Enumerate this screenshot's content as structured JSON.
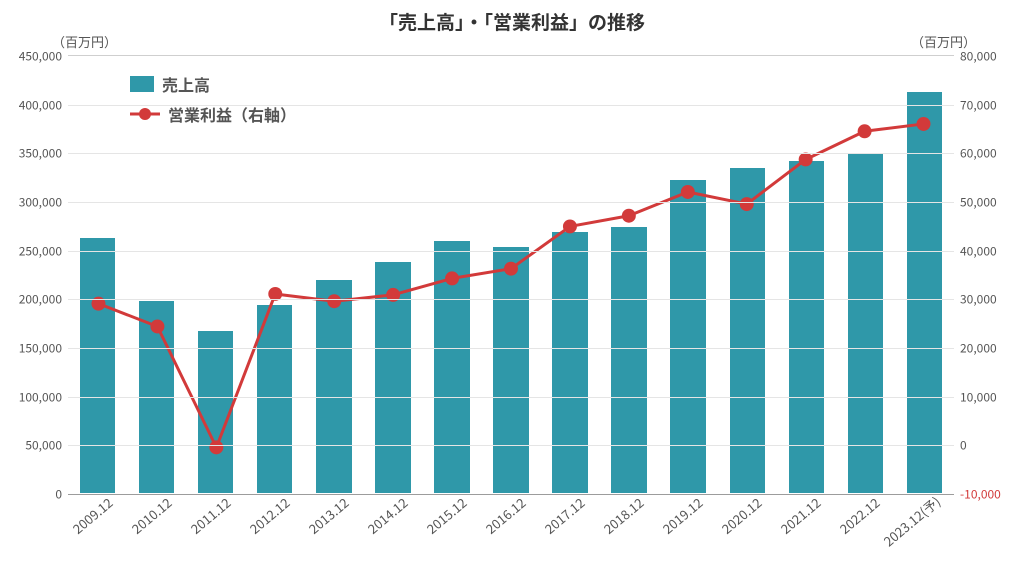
{
  "chart": {
    "type": "bar+line",
    "title": "「売上高」・「営業利益」の推移",
    "left_unit": "（百万円）",
    "right_unit": "（百万円）",
    "background_color": "#ffffff",
    "grid_color": "#e5e5e5",
    "axis_color": "#9c9c9c",
    "left_axis": {
      "min": 0,
      "max": 450000,
      "step": 50000,
      "ticks": [
        "0",
        "50,000",
        "100,000",
        "150,000",
        "200,000",
        "250,000",
        "300,000",
        "350,000",
        "400,000",
        "450,000"
      ],
      "label_color": "#555555"
    },
    "right_axis": {
      "min": -10000,
      "max": 80000,
      "step": 10000,
      "ticks": [
        "-10,000",
        "0",
        "10,000",
        "20,000",
        "30,000",
        "40,000",
        "50,000",
        "60,000",
        "70,000",
        "80,000"
      ],
      "label_color_default": "#555555",
      "label_color_negative": "#d23a3a"
    },
    "categories": [
      "2009.12",
      "2010.12",
      "2011.12",
      "2012.12",
      "2013.12",
      "2014.12",
      "2015.12",
      "2016.12",
      "2017.12",
      "2018.12",
      "2019.12",
      "2020.12",
      "2021.12",
      "2022.12",
      "2023.12(予)"
    ],
    "series": {
      "sales": {
        "label": "売上高",
        "axis": "left",
        "color": "#2f98a9",
        "bar_width_ratio": 0.6,
        "values": [
          262000,
          197000,
          166000,
          193000,
          219000,
          237000,
          259000,
          253000,
          268000,
          273000,
          322000,
          334000,
          341000,
          349000,
          412000
        ]
      },
      "op_profit": {
        "label": "営業利益（右軸）",
        "axis": "right",
        "color": "#d23a3a",
        "line_width": 3,
        "marker_radius": 7,
        "values": [
          29000,
          24300,
          -600,
          31000,
          29500,
          30800,
          34200,
          36200,
          44900,
          47100,
          52000,
          49500,
          58700,
          64500,
          66000
        ]
      }
    },
    "legend": {
      "items": [
        {
          "key": "sales",
          "label": "売上高"
        },
        {
          "key": "op_profit",
          "label": "営業利益（右軸）"
        }
      ]
    },
    "title_fontsize": 19,
    "tick_fontsize": 12,
    "xlabel_fontsize": 13,
    "xlabel_rotation_deg": -40
  }
}
